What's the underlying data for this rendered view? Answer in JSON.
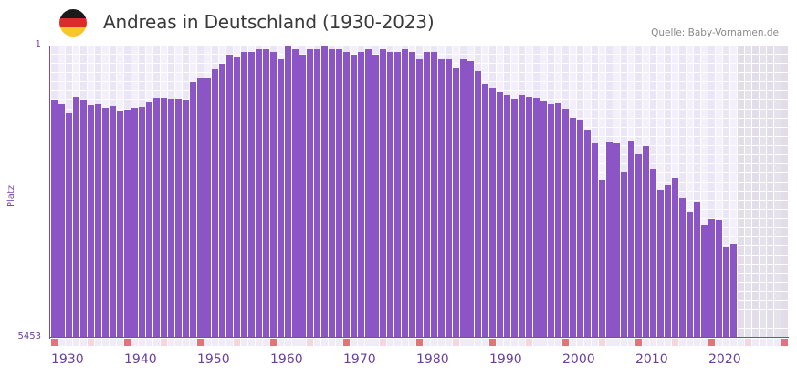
{
  "header": {
    "flag_icon": "germany-flag-icon",
    "flag_colors": [
      "#1a1a1a",
      "#dd2a2a",
      "#f7c72a"
    ],
    "title": "Andreas in Deutschland (1930-2023)",
    "source": "Quelle: Baby-Vornamen.de"
  },
  "colors": {
    "bar": "#8b55c6",
    "axis": "#7a48b3",
    "marker_decade": "#e3737b",
    "marker_half": "#f5d6df",
    "marker_default": "#efebf8"
  },
  "chart_data": {
    "type": "bar",
    "title": "Andreas in Deutschland (1930-2023)",
    "xlabel": "",
    "ylabel": "Platz",
    "y_scale": "log",
    "y_inverted": true,
    "ylim": [
      1,
      5453
    ],
    "ytick_labels": [
      "1",
      "5453"
    ],
    "xlim": [
      1930,
      2030
    ],
    "xtick_labels": [
      "1930",
      "1940",
      "1950",
      "1960",
      "1970",
      "1980",
      "1990",
      "2000",
      "2010",
      "2020"
    ],
    "grid": true,
    "legend": null,
    "annotations": [
      "Quelle: Baby-Vornamen.de"
    ],
    "categories": [
      1930,
      1931,
      1932,
      1933,
      1934,
      1935,
      1936,
      1937,
      1938,
      1939,
      1940,
      1941,
      1942,
      1943,
      1944,
      1945,
      1946,
      1947,
      1948,
      1949,
      1950,
      1951,
      1952,
      1953,
      1954,
      1955,
      1956,
      1957,
      1958,
      1959,
      1960,
      1961,
      1962,
      1963,
      1964,
      1965,
      1966,
      1967,
      1968,
      1969,
      1970,
      1971,
      1972,
      1973,
      1974,
      1975,
      1976,
      1977,
      1978,
      1979,
      1980,
      1981,
      1982,
      1983,
      1984,
      1985,
      1986,
      1987,
      1988,
      1989,
      1990,
      1991,
      1992,
      1993,
      1994,
      1995,
      1996,
      1997,
      1998,
      1999,
      2000,
      2001,
      2002,
      2003,
      2004,
      2005,
      2006,
      2007,
      2008,
      2009,
      2010,
      2011,
      2012,
      2013,
      2014,
      2015,
      2016,
      2017,
      2018,
      2019,
      2020,
      2021,
      2022,
      2023
    ],
    "series": [
      {
        "name": "Platz (Rang)",
        "values": [
          5.0,
          5.6,
          7.3,
          4.5,
          5.0,
          5.7,
          5.6,
          6.2,
          5.9,
          6.9,
          6.7,
          6.2,
          6.1,
          5.3,
          4.6,
          4.6,
          4.9,
          4.8,
          5.0,
          2.9,
          2.6,
          2.6,
          2.0,
          1.7,
          1.3,
          1.4,
          1.2,
          1.2,
          1.1,
          1.1,
          1.2,
          1.5,
          1.0,
          1.1,
          1.3,
          1.1,
          1.1,
          1.0,
          1.1,
          1.1,
          1.2,
          1.3,
          1.2,
          1.1,
          1.3,
          1.1,
          1.2,
          1.2,
          1.1,
          1.2,
          1.5,
          1.2,
          1.2,
          1.5,
          1.5,
          1.9,
          1.5,
          1.6,
          2.1,
          3.1,
          3.4,
          3.9,
          4.3,
          4.9,
          4.3,
          4.5,
          4.6,
          5.2,
          5.6,
          5.5,
          6.4,
          8.4,
          8.8,
          11.9,
          17.8,
          52,
          17.3,
          17.8,
          41,
          16.8,
          24.5,
          19.3,
          38,
          70,
          61,
          49,
          89,
          133,
          99,
          194,
          165,
          170,
          379,
          341
        ]
      }
    ]
  }
}
